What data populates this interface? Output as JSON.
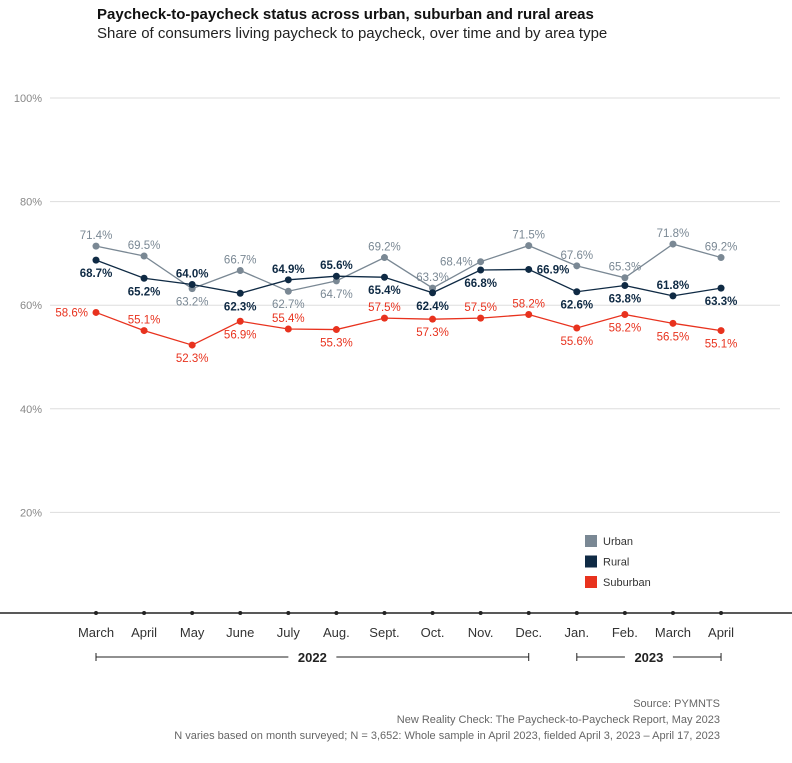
{
  "chart_data": {
    "type": "line",
    "title": "Paycheck-to-paycheck status across urban, suburban and rural areas",
    "subtitle": "Share of consumers living paycheck to paycheck, over time and by area type",
    "categories": [
      "March",
      "April",
      "May",
      "June",
      "July",
      "Aug.",
      "Sept.",
      "Oct.",
      "Nov.",
      "Dec.",
      "Jan.",
      "Feb.",
      "March",
      "April"
    ],
    "year_groups": [
      {
        "label": "2022",
        "from": 0,
        "to": 9
      },
      {
        "label": "2023",
        "from": 10,
        "to": 13
      }
    ],
    "ylim": [
      0,
      100
    ],
    "yticks": [
      20,
      40,
      60,
      80,
      100
    ],
    "ytick_labels": [
      "20%",
      "40%",
      "60%",
      "80%",
      "100%"
    ],
    "grid": "horizontal",
    "legend_position": "bottom-right",
    "series": [
      {
        "name": "Urban",
        "color": "#7a8894",
        "values": [
          71.4,
          69.5,
          63.2,
          66.7,
          62.7,
          64.7,
          69.2,
          63.3,
          68.4,
          71.5,
          67.6,
          65.3,
          71.8,
          69.2
        ]
      },
      {
        "name": "Rural",
        "color": "#0f2a44",
        "values": [
          68.7,
          65.2,
          64.0,
          62.3,
          64.9,
          65.6,
          65.4,
          62.4,
          66.8,
          66.9,
          62.6,
          63.8,
          61.8,
          63.3
        ]
      },
      {
        "name": "Suburban",
        "color": "#e8321e",
        "values": [
          58.6,
          55.1,
          52.3,
          56.9,
          55.4,
          55.3,
          57.5,
          57.3,
          57.5,
          58.2,
          55.6,
          58.2,
          56.5,
          55.1
        ]
      }
    ]
  },
  "footer": {
    "source": "Source: PYMNTS",
    "report": "New Reality Check: The Paycheck-to-Paycheck Report, May 2023",
    "note": "N varies based on month surveyed; N = 3,652: Whole sample in April 2023, fielded April 3, 2023 – April 17, 2023"
  }
}
